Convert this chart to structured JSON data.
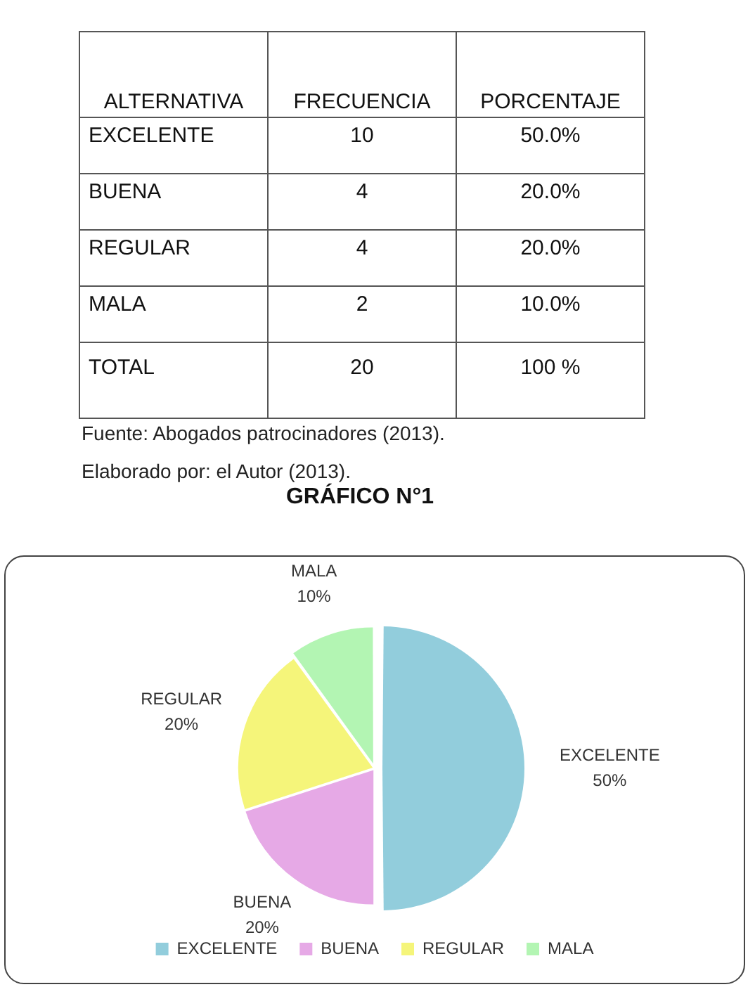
{
  "chart_data": [
    {
      "type": "other",
      "xlabel": "ALTERNATIVA",
      "categories": [
        "EXCELENTE",
        "BUENA",
        "REGULAR",
        "MALA",
        "TOTAL"
      ],
      "series": [
        {
          "name": "FRECUENCIA",
          "values": [
            10,
            4,
            4,
            2,
            20
          ]
        },
        {
          "name": "PORCENTAJE",
          "values": [
            50,
            20,
            20,
            10,
            100
          ],
          "value_labels": [
            "50.0%",
            "20.0%",
            "20.0%",
            "10.0%",
            "100 %"
          ]
        }
      ],
      "data_labels": true,
      "annotations": [
        "Fuente: Abogados patrocinadores (2013).",
        "Elaborado por: el Autor (2013)."
      ]
    },
    {
      "type": "pie",
      "title": "GRÁFICO N°1",
      "categories": [
        "EXCELENTE",
        "BUENA",
        "REGULAR",
        "MALA"
      ],
      "values": [
        50,
        20,
        20,
        10
      ],
      "colors": [
        "#92cddc",
        "#e6a9e6",
        "#f5f57a",
        "#b3f5b3"
      ],
      "value_labels": [
        "50%",
        "20%",
        "20%",
        "10%"
      ],
      "legend": "bottom"
    }
  ]
}
